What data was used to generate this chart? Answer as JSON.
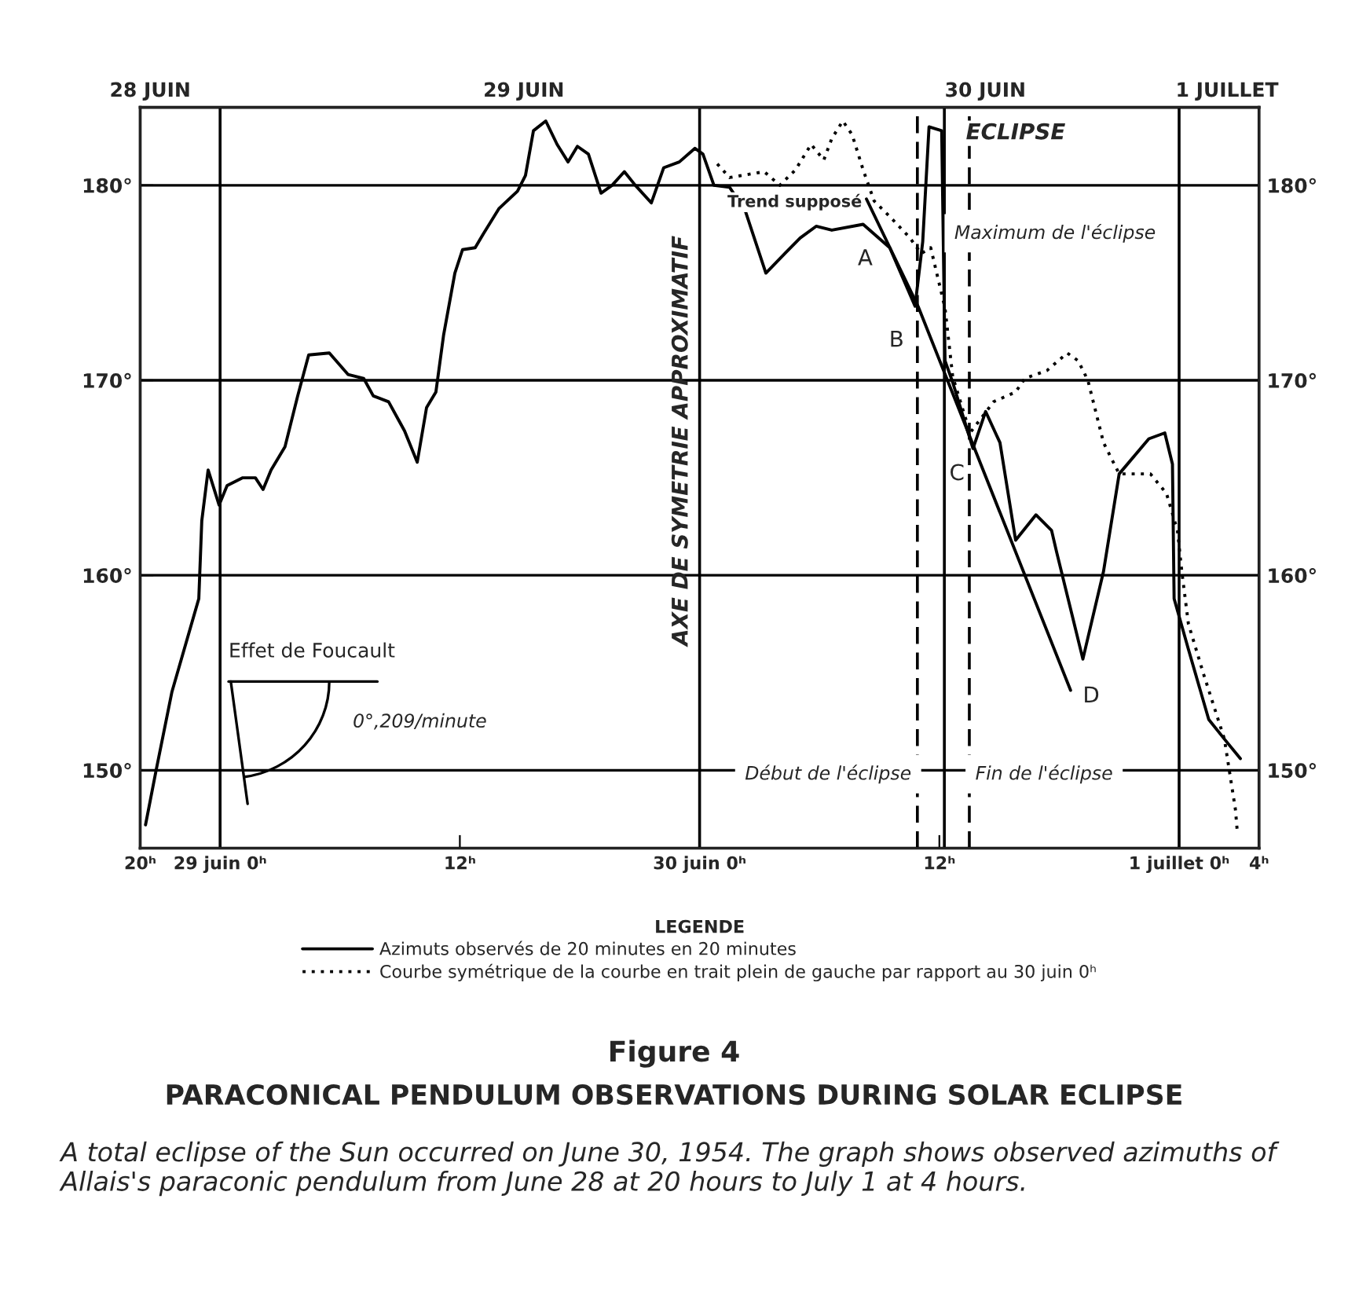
{
  "chart_data": {
    "type": "line",
    "title": "Figure 4",
    "subtitle": "PARACONICAL PENDULUM OBSERVATIONS DURING SOLAR ECLIPSE",
    "legend_title": "LEGENDE",
    "legend": "bottom",
    "grid": "y",
    "xlim": [
      "1954-06-28T20:00",
      "1954-07-01T04:00"
    ],
    "xticks": [
      {
        "value": "1954-06-28T20:00",
        "label": "20ʰ"
      },
      {
        "value": "1954-06-29T00:00",
        "label": "29 juin 0ʰ"
      },
      {
        "value": "1954-06-29T12:00",
        "label": "12ʰ"
      },
      {
        "value": "1954-06-30T00:00",
        "label": "30 juin 0ʰ"
      },
      {
        "value": "1954-06-30T12:00",
        "label": "12ʰ"
      },
      {
        "value": "1954-07-01T00:00",
        "label": "1 juillet 0ʰ"
      },
      {
        "value": "1954-07-01T04:00",
        "label": "4ʰ"
      }
    ],
    "x2lim": [
      "1954-06-28T20:00",
      "1954-07-01T04:00"
    ],
    "x2ticks": [
      {
        "value": "1954-06-28T20:30",
        "label": "28 JUIN"
      },
      {
        "value": "1954-06-29T15:12",
        "label": "29 JUIN"
      },
      {
        "value": "1954-06-30T14:18",
        "label": "30 JUIN"
      },
      {
        "value": "1954-07-01T02:24",
        "label": "1 JUILLET"
      }
    ],
    "ylim": [
      146,
      184
    ],
    "yticks": [
      {
        "value": 150,
        "label": "150°"
      },
      {
        "value": 160,
        "label": "160°"
      },
      {
        "value": 170,
        "label": "170°"
      },
      {
        "value": 180,
        "label": "180°"
      }
    ],
    "y2lim": [
      146,
      184
    ],
    "y2ticks": [
      {
        "value": 150,
        "label": "150°"
      },
      {
        "value": 160,
        "label": "160°"
      },
      {
        "value": 170,
        "label": "170°"
      },
      {
        "value": 180,
        "label": "180°"
      }
    ],
    "series": [
      {
        "name": "Azimuts observés de 20 minutes en 20 minutes",
        "color": "#000000",
        "line_style": "solid",
        "x": [
          "1954-06-28T20:16",
          "1954-06-28T20:49",
          "1954-06-28T21:35",
          "1954-06-28T22:56",
          "1954-06-28T23:05",
          "1954-06-28T23:24",
          "1954-06-28T23:57",
          "1954-06-29T00:21",
          "1954-06-29T01:08",
          "1954-06-29T01:46",
          "1954-06-29T02:09",
          "1954-06-29T02:33",
          "1954-06-29T03:15",
          "1954-06-29T03:53",
          "1954-06-29T04:26",
          "1954-06-29T05:28",
          "1954-06-29T06:24",
          "1954-06-29T07:11",
          "1954-06-29T07:40",
          "1954-06-29T08:26",
          "1954-06-29T09:14",
          "1954-06-29T09:52",
          "1954-06-29T10:20",
          "1954-06-29T10:48",
          "1954-06-29T11:11",
          "1954-06-29T11:45",
          "1954-06-29T12:08",
          "1954-06-29T12:46",
          "1954-06-29T13:10",
          "1954-06-29T13:57",
          "1954-06-29T14:53",
          "1954-06-29T15:17",
          "1954-06-29T15:41",
          "1954-06-29T16:18",
          "1954-06-29T16:52",
          "1954-06-29T17:25",
          "1954-06-29T17:53",
          "1954-06-29T18:26",
          "1954-06-29T19:04",
          "1954-06-29T19:37",
          "1954-06-29T20:14",
          "1954-06-29T20:47",
          "1954-06-29T21:35",
          "1954-06-29T22:12",
          "1954-06-29T22:59",
          "1954-06-29T23:46",
          "1954-06-30T00:10",
          "1954-06-30T00:43",
          "1954-06-30T01:30",
          "1954-06-30T02:17",
          "1954-06-30T03:19",
          "1954-06-30T04:16",
          "1954-06-30T05:02",
          "1954-06-30T05:50",
          "1954-06-30T06:37",
          "1954-06-30T08:11",
          "1954-06-30T09:31",
          "1954-06-30T10:47",
          "1954-06-30T11:10",
          "1954-06-30T11:29",
          "1954-06-30T12:07",
          "1954-06-30T12:17",
          "1954-06-30T12:40",
          "1954-06-30T13:41",
          "1954-06-30T14:19",
          "1954-06-30T15:02",
          "1954-06-30T15:49",
          "1954-06-30T16:50",
          "1954-06-30T17:37",
          "1954-06-30T17:52",
          "1954-06-30T18:38",
          "1954-06-30T19:11",
          "1954-06-30T20:13",
          "1954-06-30T21:00",
          "1954-06-30T22:29",
          "1954-06-30T23:17",
          "1954-06-30T23:40",
          "1954-06-30T23:45",
          "1954-07-01T00:28",
          "1954-07-01T01:29",
          "1954-07-01T02:16",
          "1954-07-01T03:04"
        ],
        "values": [
          147.2,
          150.1,
          154.0,
          158.8,
          162.8,
          165.4,
          163.6,
          164.6,
          165.0,
          165.0,
          164.4,
          165.4,
          166.6,
          169.2,
          171.3,
          171.4,
          170.3,
          170.1,
          169.2,
          168.9,
          167.4,
          165.8,
          168.6,
          169.4,
          172.3,
          175.5,
          176.7,
          176.8,
          177.5,
          178.8,
          179.7,
          180.5,
          182.8,
          183.3,
          182.1,
          181.2,
          182.0,
          181.6,
          179.6,
          180.0,
          180.7,
          180.0,
          179.1,
          180.9,
          181.2,
          181.9,
          181.6,
          180.0,
          179.9,
          178.7,
          175.5,
          176.5,
          177.3,
          177.9,
          177.7,
          178.0,
          176.8,
          173.8,
          177.1,
          183.0,
          182.8,
          171.0,
          169.9,
          166.5,
          168.4,
          166.8,
          161.8,
          163.1,
          162.3,
          161.2,
          158.0,
          155.7,
          160.2,
          165.2,
          167.0,
          167.3,
          165.7,
          158.8,
          156.2,
          152.6,
          151.6,
          150.6
        ]
      },
      {
        "name": "Courbe symétrique de la courbe en trait plein de gauche par rapport au 30 juin 0ʰ",
        "color": "#000000",
        "line_style": "dotted",
        "x": [
          "1954-06-30T00:53",
          "1954-06-30T01:30",
          "1954-06-30T03:14",
          "1954-06-30T04:01",
          "1954-06-30T04:48",
          "1954-06-30T05:35",
          "1954-06-30T06:13",
          "1954-06-30T06:37",
          "1954-06-30T07:10",
          "1954-06-30T07:38",
          "1954-06-30T08:11",
          "1954-06-30T08:44",
          "1954-06-30T09:31",
          "1954-06-30T10:32",
          "1954-06-30T11:05",
          "1954-06-30T11:34",
          "1954-06-30T12:17",
          "1954-06-30T12:40",
          "1954-06-30T13:32",
          "1954-06-30T14:43",
          "1954-06-30T15:49",
          "1954-06-30T16:17",
          "1954-06-30T17:23",
          "1954-06-30T18:24",
          "1954-06-30T18:57",
          "1954-06-30T19:26",
          "1954-06-30T20:13",
          "1954-06-30T21:00",
          "1954-06-30T22:34",
          "1954-06-30T23:22",
          "1954-06-30T23:55",
          "1954-07-01T00:08",
          "1954-07-01T00:28",
          "1954-07-01T01:14",
          "1954-07-01T02:16",
          "1954-07-01T02:49",
          "1954-07-01T02:54"
        ],
        "values": [
          181.1,
          180.4,
          180.7,
          180.0,
          180.8,
          182.1,
          181.3,
          182.4,
          183.3,
          182.6,
          180.8,
          179.2,
          178.4,
          177.3,
          176.5,
          176.8,
          173.7,
          170.2,
          167.3,
          168.9,
          169.4,
          170.1,
          170.5,
          171.4,
          171.0,
          170.0,
          166.8,
          165.2,
          165.2,
          164.2,
          162.3,
          160.2,
          157.5,
          154.9,
          151.6,
          148.0,
          147.0
        ]
      },
      {
        "color": "#000000",
        "line_style": "solid",
        "x": [
          "1954-06-30T08:21",
          "1954-06-30T10:56",
          "1954-06-30T18:34"
        ],
        "values": [
          179.3,
          173.8,
          154.1
        ]
      }
    ],
    "ref_lines": [
      {
        "axis": "x",
        "value": "1954-06-29T00:00",
        "color": "#000000"
      },
      {
        "axis": "x",
        "value": "1954-06-30T00:00",
        "label": "AXE DE SYMETRIE APPROXIMATIF",
        "color": "#000000"
      },
      {
        "axis": "x",
        "value": "1954-06-30T10:54",
        "label": "Début de l'éclipse",
        "color": "#000000",
        "line_style": "dashed"
      },
      {
        "axis": "x",
        "value": "1954-06-30T12:15",
        "label": "Maximum de l'éclipse",
        "color": "#000000"
      },
      {
        "axis": "x",
        "value": "1954-06-30T13:30",
        "label": "Fin de l'éclipse",
        "color": "#000000",
        "line_style": "dashed"
      },
      {
        "axis": "x",
        "value": "1954-07-01T00:00",
        "color": "#000000"
      }
    ],
    "annotations": [
      "Trend supposé",
      "A",
      "B",
      "C",
      "D",
      "ECLIPSE",
      "Effet de Foucault",
      "0°,209/minute",
      "A total eclipse of the Sun occurred on June 30, 1954. The graph shows observed azimuths of Allais's paraconic pendulum from June 28 at 20 hours to July 1 at 4 hours."
    ]
  }
}
